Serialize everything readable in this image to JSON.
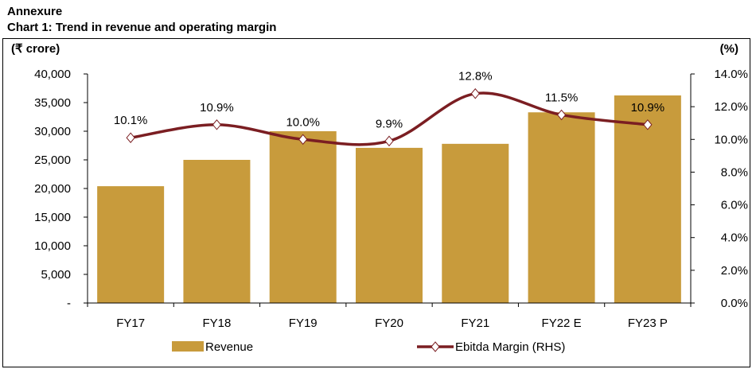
{
  "header": {
    "annexure": "Annexure",
    "chart_title": "Chart 1: Trend in revenue and operating margin"
  },
  "chart_data": {
    "type": "bar+line",
    "title": "Chart 1: Trend in revenue and operating margin",
    "ylabel": "(₹ crore)",
    "y2label": "(%)",
    "categories": [
      "FY17",
      "FY18",
      "FY19",
      "FY20",
      "FY21",
      "FY22 E",
      "FY23 P"
    ],
    "ylim": [
      0,
      40000
    ],
    "y_ticks": [
      "-",
      "5,000",
      "10,000",
      "15,000",
      "20,000",
      "25,000",
      "30,000",
      "35,000",
      "40,000"
    ],
    "y2lim": [
      0,
      14
    ],
    "y2_ticks": [
      "0.0%",
      "2.0%",
      "4.0%",
      "6.0%",
      "8.0%",
      "10.0%",
      "12.0%",
      "14.0%"
    ],
    "grid": false,
    "legend": "bottom",
    "series": [
      {
        "name": "Revenue",
        "type": "bar",
        "axis": "left",
        "color": "#C89B3C",
        "values": [
          20400,
          25000,
          30000,
          27100,
          27800,
          33300,
          36250
        ]
      },
      {
        "name": "Ebitda Margin (RHS)",
        "type": "line",
        "axis": "right",
        "color": "#7B1E22",
        "values": [
          10.1,
          10.9,
          10.0,
          9.9,
          12.8,
          11.5,
          10.9
        ],
        "labels": [
          "10.1%",
          "10.9%",
          "10.0%",
          "9.9%",
          "12.8%",
          "11.5%",
          "10.9%"
        ]
      }
    ]
  }
}
